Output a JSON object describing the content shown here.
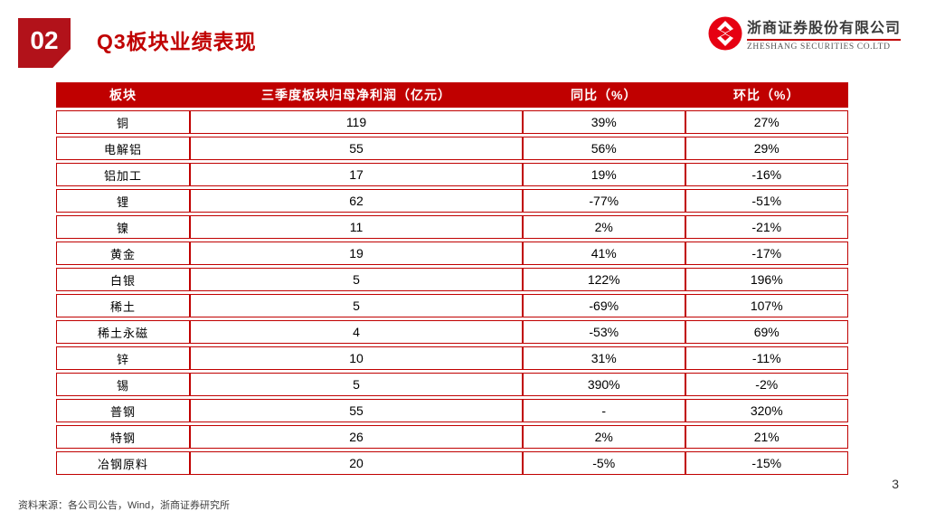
{
  "header": {
    "section_number": "02",
    "title": "Q3板块业绩表现"
  },
  "logo": {
    "company_cn": "浙商证券股份有限公司",
    "company_en": "ZHESHANG SECURITIES CO.LTD"
  },
  "chart_data": {
    "type": "table",
    "columns": [
      "板块",
      "三季度板块归母净利润（亿元）",
      "同比（%）",
      "环比（%）"
    ],
    "rows": [
      [
        "铜",
        "119",
        "39%",
        "27%"
      ],
      [
        "电解铝",
        "55",
        "56%",
        "29%"
      ],
      [
        "铝加工",
        "17",
        "19%",
        "-16%"
      ],
      [
        "锂",
        "62",
        "-77%",
        "-51%"
      ],
      [
        "镍",
        "11",
        "2%",
        "-21%"
      ],
      [
        "黄金",
        "19",
        "41%",
        "-17%"
      ],
      [
        "白银",
        "5",
        "122%",
        "196%"
      ],
      [
        "稀土",
        "5",
        "-69%",
        "107%"
      ],
      [
        "稀土永磁",
        "4",
        "-53%",
        "69%"
      ],
      [
        "锌",
        "10",
        "31%",
        "-11%"
      ],
      [
        "锡",
        "5",
        "390%",
        "-2%"
      ],
      [
        "普钢",
        "55",
        "-",
        "320%"
      ],
      [
        "特钢",
        "26",
        "2%",
        "21%"
      ],
      [
        "冶钢原料",
        "20",
        "-5%",
        "-15%"
      ]
    ]
  },
  "footer": {
    "source": "资料来源：各公司公告，Wind，浙商证券研究所",
    "page_number": "3"
  },
  "colors": {
    "accent_red": "#c00000",
    "badge_red": "#b2121a",
    "logo_red": "#e60012"
  }
}
